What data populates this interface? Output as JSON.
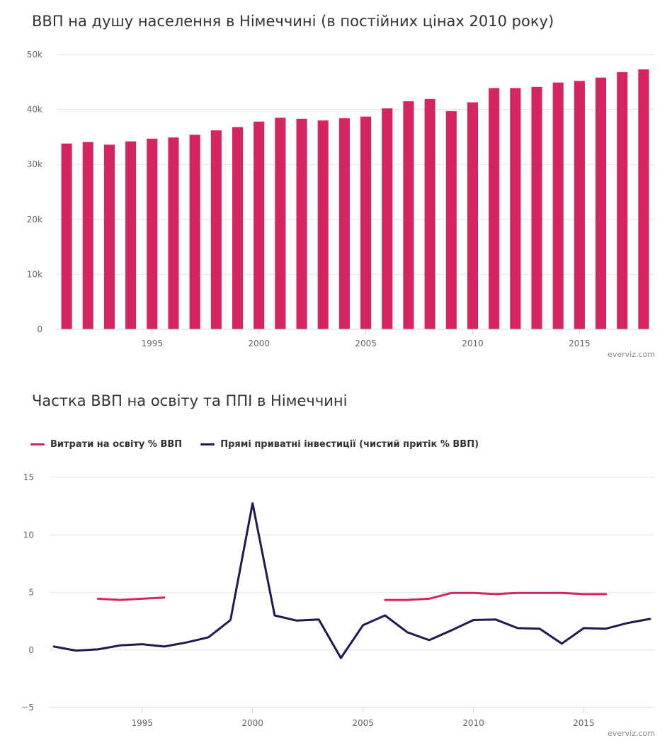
{
  "colors": {
    "bar": "#d5255e",
    "series_education": "#d5255e",
    "series_fdi": "#22184f",
    "grid": "#e6e6e6",
    "axis": "#ccd6eb"
  },
  "chart_data": [
    {
      "type": "bar",
      "title": "ВВП на душу населення в Німеччині (в постійних цінах 2010 року)",
      "credit": "everviz.com",
      "x": [
        1991,
        1992,
        1993,
        1994,
        1995,
        1996,
        1997,
        1998,
        1999,
        2000,
        2001,
        2002,
        2003,
        2004,
        2005,
        2006,
        2007,
        2008,
        2009,
        2010,
        2011,
        2012,
        2013,
        2014,
        2015,
        2016,
        2017,
        2018
      ],
      "values": [
        33800,
        34100,
        33600,
        34200,
        34700,
        34900,
        35400,
        36200,
        36800,
        37800,
        38500,
        38300,
        38000,
        38400,
        38700,
        40200,
        41500,
        41900,
        39700,
        41300,
        43900,
        43900,
        44100,
        44900,
        45200,
        45800,
        46800,
        47300
      ],
      "ylim": [
        0,
        50000
      ],
      "yticks": [
        0,
        10000,
        20000,
        30000,
        40000,
        50000
      ],
      "ytick_labels": [
        "0",
        "10k",
        "20k",
        "30k",
        "40k",
        "50k"
      ],
      "xticks": [
        1995,
        2000,
        2005,
        2010,
        2015
      ],
      "xtick_labels": [
        "1995",
        "2000",
        "2005",
        "2010",
        "2015"
      ],
      "xlabel": "",
      "ylabel": "",
      "grid": true
    },
    {
      "type": "line",
      "title": "Частка ВВП на освіту та ППІ в Німеччині",
      "credit": "everviz.com",
      "legend_position": "top-left",
      "ylim": [
        -5,
        15
      ],
      "yticks": [
        -5,
        0,
        5,
        10,
        15
      ],
      "ytick_labels": [
        "−5",
        "0",
        "5",
        "10",
        "15"
      ],
      "xlim": [
        1991,
        2018
      ],
      "xticks": [
        1995,
        2000,
        2005,
        2010,
        2015
      ],
      "xtick_labels": [
        "1995",
        "2000",
        "2005",
        "2010",
        "2015"
      ],
      "xlabel": "",
      "ylabel": "",
      "grid": true,
      "series": [
        {
          "name": "Витрати на освіту % ВВП",
          "x": [
            1993,
            1994,
            1995,
            1996,
            2006,
            2007,
            2008,
            2009,
            2010,
            2011,
            2012,
            2013,
            2014,
            2015,
            2016
          ],
          "values": [
            4.45,
            4.35,
            4.45,
            4.55,
            4.35,
            4.35,
            4.45,
            4.95,
            4.95,
            4.85,
            4.95,
            4.95,
            4.95,
            4.85,
            4.85
          ],
          "segments": [
            [
              1993,
              1996
            ],
            [
              2006,
              2016
            ]
          ]
        },
        {
          "name": "Прямі приватні інвестиції (чистий притік % ВВП)",
          "x": [
            1991,
            1992,
            1993,
            1994,
            1995,
            1996,
            1997,
            1998,
            1999,
            2000,
            2001,
            2002,
            2003,
            2004,
            2005,
            2006,
            2007,
            2008,
            2009,
            2010,
            2011,
            2012,
            2013,
            2014,
            2015,
            2016,
            2017,
            2018
          ],
          "values": [
            0.3,
            -0.05,
            0.05,
            0.4,
            0.5,
            0.3,
            0.65,
            1.1,
            2.6,
            12.75,
            3.0,
            2.55,
            2.65,
            -0.7,
            2.15,
            3.0,
            1.55,
            0.85,
            1.7,
            2.6,
            2.65,
            1.9,
            1.85,
            0.55,
            1.9,
            1.85,
            2.35,
            2.7
          ]
        }
      ]
    }
  ]
}
